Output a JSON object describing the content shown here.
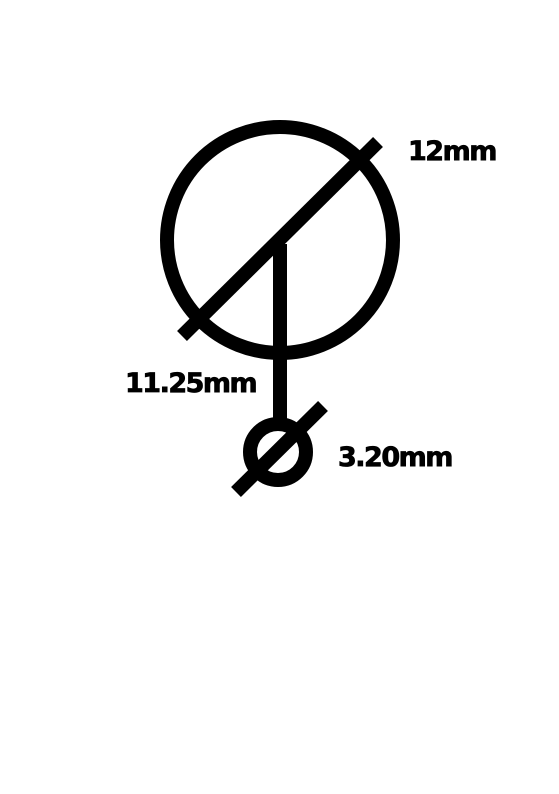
{
  "diagram": {
    "labels": {
      "large_diameter": "12mm",
      "stem_length": "11.25mm",
      "small_diameter": "3.20mm"
    },
    "colors": {
      "stroke": "#000000",
      "background": "#ffffff"
    }
  }
}
